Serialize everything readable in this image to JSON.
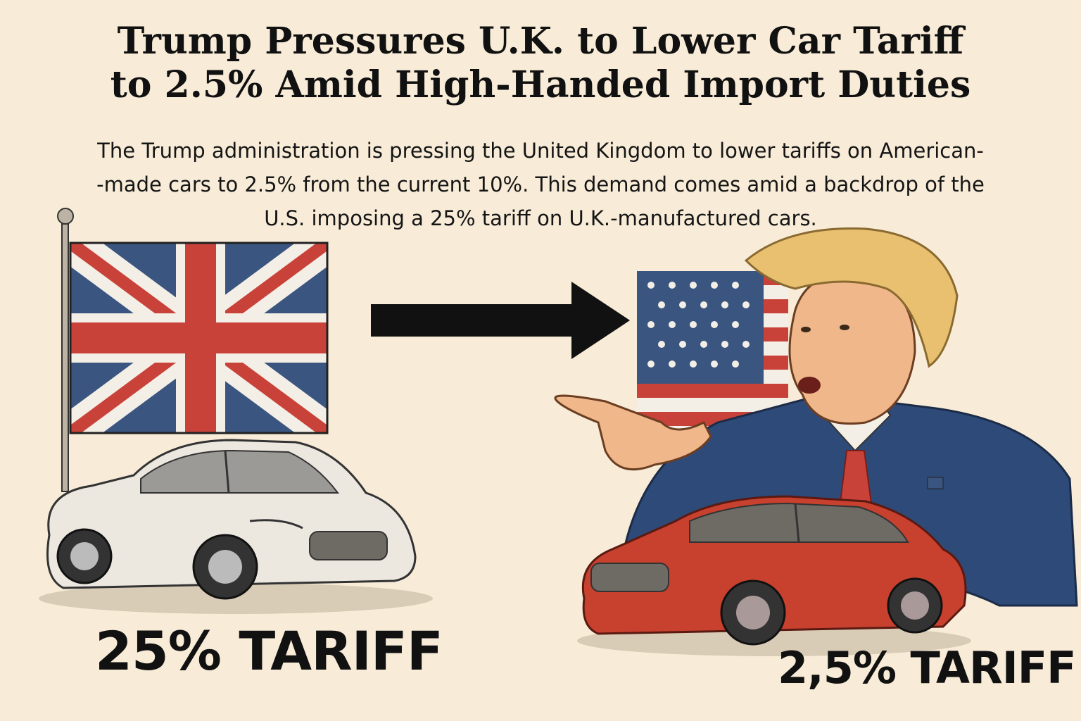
{
  "headline": {
    "line1": "Trump Pressures U.K. to Lower Car Tariff",
    "line2": "to 2.5% Amid High-Handed Import Duties"
  },
  "subhead": {
    "line1": "The Trump administration is pressing the United Kingdom to lower tariffs on American-",
    "line2": "-made cars to 2.5% from the current 10%. This demand comes amid a backdrop of the",
    "line3": "U.S. imposing a 25% tariff on U.K.-manufactured cars."
  },
  "labels": {
    "left": "25% TARIFF",
    "right": "2,5% TARIFF"
  },
  "colors": {
    "background": "#f8ecd8",
    "flag_red": "#c8423a",
    "flag_blue": "#3a5680",
    "white_car": "#ece7df",
    "red_car": "#c8402e",
    "suit": "#2e4a78",
    "hair": "#e8c070"
  },
  "icons": {
    "uk_flag": "union-jack-icon",
    "us_flag": "us-flag-icon",
    "arrow": "right-arrow-icon"
  }
}
